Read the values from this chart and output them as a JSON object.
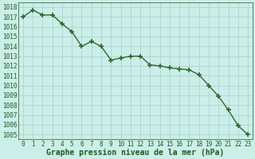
{
  "hours": [
    0,
    1,
    2,
    3,
    4,
    5,
    6,
    7,
    8,
    9,
    10,
    11,
    12,
    13,
    14,
    15,
    16,
    17,
    18,
    19,
    20,
    21,
    22,
    23
  ],
  "pressure": [
    1017.0,
    1017.7,
    1017.2,
    1017.2,
    1016.3,
    1015.5,
    1014.0,
    1014.5,
    1014.0,
    1012.6,
    1012.8,
    1013.0,
    1013.0,
    1012.1,
    1012.0,
    1011.8,
    1011.7,
    1011.6,
    1011.1,
    1010.0,
    1008.9,
    1007.5,
    1005.9,
    1005.0
  ],
  "line_color": "#2d6a2d",
  "marker_color": "#2d6a2d",
  "bg_color": "#cceee8",
  "grid_color": "#aacccc",
  "xlabel": "Graphe pression niveau de la mer (hPa)",
  "ylim_min": 1004.5,
  "ylim_max": 1018.5,
  "xlim_min": -0.5,
  "xlim_max": 23.5,
  "yticks": [
    1005,
    1006,
    1007,
    1008,
    1009,
    1010,
    1011,
    1012,
    1013,
    1014,
    1015,
    1016,
    1017,
    1018
  ],
  "xticks": [
    0,
    1,
    2,
    3,
    4,
    5,
    6,
    7,
    8,
    9,
    10,
    11,
    12,
    13,
    14,
    15,
    16,
    17,
    18,
    19,
    20,
    21,
    22,
    23
  ],
  "tick_fontsize": 5.5,
  "xlabel_fontsize": 7,
  "axis_color": "#1a5c1a",
  "marker_size": 4,
  "marker_edge_width": 1.2,
  "line_width": 1.0
}
